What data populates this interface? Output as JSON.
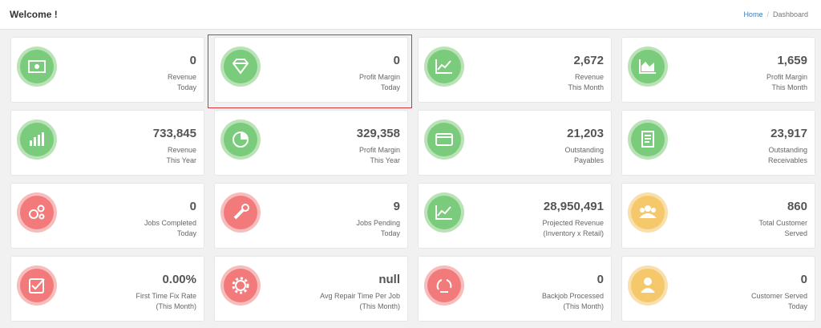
{
  "header": {
    "title": "Welcome !",
    "breadcrumb": [
      "Home",
      "Dashboard"
    ]
  },
  "cards": [
    {
      "value": "0",
      "label": [
        "Revenue",
        "Today"
      ],
      "color": "green"
    },
    {
      "value": "0",
      "label": [
        "Profit Margin",
        "Today"
      ],
      "color": "green"
    },
    {
      "value": "2,672",
      "label": [
        "Revenue",
        "This Month"
      ],
      "color": "green"
    },
    {
      "value": "1,659",
      "label": [
        "Profit Margin",
        "This Month"
      ],
      "color": "green"
    },
    {
      "value": "733,845",
      "label": [
        "Revenue",
        "This Year"
      ],
      "color": "green"
    },
    {
      "value": "329,358",
      "label": [
        "Profit Margin",
        "This Year"
      ],
      "color": "green"
    },
    {
      "value": "21,203",
      "label": [
        "Outstanding",
        "Payables"
      ],
      "color": "green"
    },
    {
      "value": "23,917",
      "label": [
        "Outstanding",
        "Receivables"
      ],
      "color": "green"
    },
    {
      "value": "0",
      "label": [
        "Jobs Completed",
        "Today"
      ],
      "color": "red"
    },
    {
      "value": "9",
      "label": [
        "Jobs Pending",
        "Today"
      ],
      "color": "red"
    },
    {
      "value": "28,950,491",
      "label": [
        "Projected Revenue",
        "(Inventory x Retail)"
      ],
      "color": "green"
    },
    {
      "value": "860",
      "label": [
        "Total Customer",
        "Served"
      ],
      "color": "yellow"
    },
    {
      "value": "0.00%",
      "label": [
        "First Time Fix Rate",
        "(This Month)"
      ],
      "color": "red"
    },
    {
      "value": "null",
      "label": [
        "Avg Repair Time Per Job",
        "(This Month)"
      ],
      "color": "red"
    },
    {
      "value": "0",
      "label": [
        "Backjob Processed",
        "(This Month)"
      ],
      "color": "red"
    },
    {
      "value": "0",
      "label": [
        "Customer Served",
        "Today"
      ],
      "color": "yellow"
    }
  ]
}
